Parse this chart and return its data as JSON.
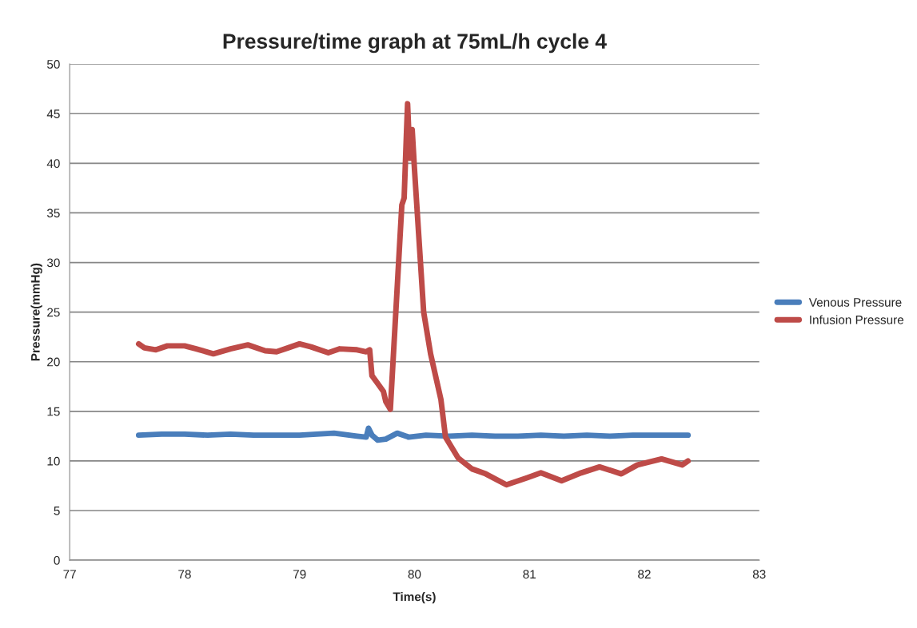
{
  "chart_data": {
    "type": "line",
    "title": "Pressure/time graph at 75mL/h cycle 4",
    "xlabel": "Time(s)",
    "ylabel": "Pressure(mmHg)",
    "xlim": [
      77,
      83
    ],
    "xticks": [
      77,
      78,
      79,
      80,
      81,
      82,
      83
    ],
    "ylim": [
      0,
      50
    ],
    "yticks": [
      0,
      5,
      10,
      15,
      20,
      25,
      30,
      35,
      40,
      45,
      50
    ],
    "grid": "y",
    "legend": "right",
    "marker": "none",
    "line_style": "solid",
    "series": [
      {
        "name": "Venous Pressure",
        "color": "#4a7ebb",
        "x": [
          77.6,
          77.8,
          78.0,
          78.2,
          78.4,
          78.6,
          78.8,
          79.0,
          79.3,
          79.5,
          79.58,
          79.6,
          79.63,
          79.68,
          79.75,
          79.85,
          79.95,
          80.1,
          80.3,
          80.5,
          80.7,
          80.9,
          81.1,
          81.3,
          81.5,
          81.7,
          81.9,
          82.1,
          82.3,
          82.38
        ],
        "values": [
          12.6,
          12.7,
          12.7,
          12.6,
          12.7,
          12.6,
          12.6,
          12.6,
          12.8,
          12.5,
          12.4,
          13.3,
          12.6,
          12.1,
          12.2,
          12.8,
          12.4,
          12.6,
          12.5,
          12.6,
          12.5,
          12.5,
          12.6,
          12.5,
          12.6,
          12.5,
          12.6,
          12.6,
          12.6,
          12.6
        ]
      },
      {
        "name": "Infusion Pressure",
        "color": "#be4b48",
        "x": [
          77.6,
          77.65,
          77.75,
          77.85,
          78.0,
          78.1,
          78.25,
          78.4,
          78.55,
          78.7,
          78.8,
          78.9,
          79.0,
          79.1,
          79.25,
          79.35,
          79.5,
          79.58,
          79.61,
          79.63,
          79.68,
          79.73,
          79.75,
          79.79,
          79.89,
          79.91,
          79.93,
          79.94,
          79.96,
          79.98,
          80.0,
          80.08,
          80.14,
          80.23,
          80.27,
          80.38,
          80.5,
          80.62,
          80.8,
          80.98,
          81.1,
          81.28,
          81.45,
          81.61,
          81.8,
          81.94,
          82.15,
          82.33,
          82.38
        ],
        "values": [
          21.8,
          21.4,
          21.2,
          21.6,
          21.6,
          21.3,
          20.8,
          21.3,
          21.7,
          21.1,
          21.0,
          21.4,
          21.8,
          21.5,
          20.9,
          21.3,
          21.2,
          21.0,
          21.2,
          18.6,
          17.8,
          17.0,
          16.0,
          15.2,
          35.8,
          36.5,
          43.0,
          46.0,
          40.5,
          43.4,
          39.4,
          25.0,
          20.8,
          16.2,
          12.4,
          10.3,
          9.2,
          8.7,
          7.6,
          8.3,
          8.8,
          8.0,
          8.8,
          9.4,
          8.7,
          9.6,
          10.2,
          9.6,
          10.0
        ]
      }
    ]
  }
}
